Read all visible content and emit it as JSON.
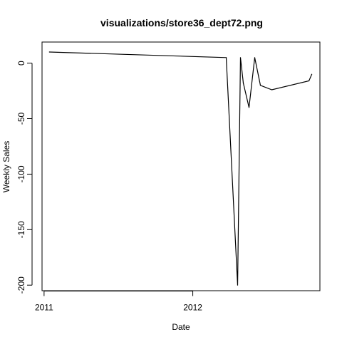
{
  "chart_data": {
    "type": "line",
    "title": "visualizations/store36_dept72.png",
    "xlabel": "Date",
    "ylabel": "Weekly Sales",
    "x_ticks": [
      {
        "label": "2011",
        "date": "2011-01-01"
      },
      {
        "label": "2012",
        "date": "2012-01-01"
      }
    ],
    "y_ticks": [
      0,
      -50,
      -100,
      -150,
      -200
    ],
    "ylim": [
      -205,
      19
    ],
    "xlim": [
      "2010-12-27",
      "2012-11-08"
    ],
    "grid": false,
    "series": [
      {
        "color": "#000000",
        "points": [
          {
            "x": "2011-01-14",
            "y": 10
          },
          {
            "x": "2012-03-23",
            "y": 5
          },
          {
            "x": "2012-04-20",
            "y": -200
          },
          {
            "x": "2012-04-27",
            "y": 5
          },
          {
            "x": "2012-05-04",
            "y": -18
          },
          {
            "x": "2012-05-18",
            "y": -40
          },
          {
            "x": "2012-06-01",
            "y": 5
          },
          {
            "x": "2012-06-15",
            "y": -20
          },
          {
            "x": "2012-07-13",
            "y": -24
          },
          {
            "x": "2012-10-12",
            "y": -16
          },
          {
            "x": "2012-10-19",
            "y": -10
          }
        ]
      }
    ]
  }
}
